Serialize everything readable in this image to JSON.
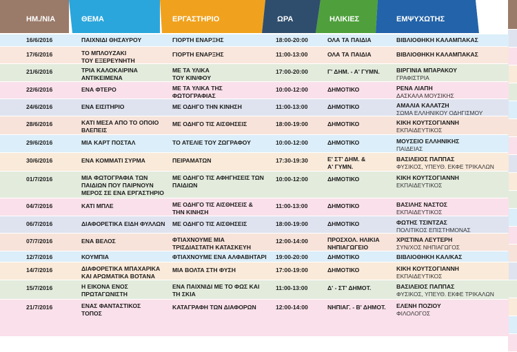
{
  "header": {
    "date": "ΗΜ./ΝΙΑ",
    "theme": "ΘΕΜΑ",
    "workshop": "ΕΡΓΑΣΤΗΡΙΟ",
    "time": "ΩΡΑ",
    "ages": "ΗΛΙΚΙΕΣ",
    "host": "ΕΜΨΥΧΩΤΗΣ"
  },
  "colors": {
    "date_header": "#9a7a69",
    "theme_header": "#2aa6dc",
    "workshop_header": "#f0a21e",
    "time_header": "#2f4e6d",
    "ages_header": "#4f9f3c",
    "host_header": "#2363a9"
  },
  "rows": [
    {
      "date": "16/6/2016",
      "theme": [
        "ΠΑΙΧΝΙΔΙ ΘΗΣΑΥΡΟΥ"
      ],
      "workshop": [
        "ΓΙΟΡΤΗ ΕΝΑΡΞΗΣ"
      ],
      "time": "18:00-20:00",
      "age": [
        "ΟΛΑ ΤΑ ΠΑΙΔΙΑ"
      ],
      "host": "ΒΙΒΛΙΟΘΗΚΗ ΚΑΛΑΜΠΑΚΑΣ",
      "host_sub": "",
      "bg": "#dbeef9"
    },
    {
      "date": "17/6/2016",
      "theme": [
        "ΤΟ ΜΠΛΟΥΖΑΚΙ",
        "ΤΟΥ ΕΞΕΡΕΥΝΗΤΗ"
      ],
      "workshop": [
        "ΓΙΟΡΤΗ ΕΝΑΡΞΗΣ"
      ],
      "time": "11:00-13:00",
      "age": [
        "ΟΛΑ ΤΑ ΠΑΙΔΙΑ"
      ],
      "host": "ΒΙΒΛΙΟΘΗΚΗ ΚΑΛΑΜΠΑΚΑΣ",
      "host_sub": "",
      "bg": "#f9e6dc"
    },
    {
      "date": "21/6/2016",
      "theme": [
        "ΤΡΙΑ ΚΑΛΟΚΑΙΡΙΝΑ",
        "ΑΝΤΙΚΕΙΜΕΝΑ"
      ],
      "workshop": [
        "ΜΕ ΤΑ ΥΛΙΚΑ",
        "ΤΟΥ ΚΙΝ/ΦΟΥ"
      ],
      "time": "17:00-20:00",
      "age": [
        "Γ' ΔΗΜ. - Α' ΓΥΜΝ."
      ],
      "host": "ΒΙΡΓΙΝΙΑ ΜΠΑΡΑΚΟΥ",
      "host_sub": "ΓΡΑΦΙΣΤΡΙΑ",
      "bg": "#e3ebdd"
    },
    {
      "date": "22/6/2016",
      "theme": [
        "ΕΝΑ ΦΤΕΡΟ"
      ],
      "workshop": [
        "ΜΕ ΤΑ ΥΛΙΚΑ ΤΗΣ",
        "ΦΩΤΟΓΡΑΦΙΑΣ"
      ],
      "time": "10:00-12:00",
      "age": [
        "ΔΗΜΟΤΙΚΟ"
      ],
      "host": "ΡΕΝΑ ΛΙΑΠΗ",
      "host_sub": "ΔΑΣΚΑΛΑ ΜΟΥΣΙΚΗΣ",
      "bg": "#fae0ea"
    },
    {
      "date": "24/6/2016",
      "theme": [
        "ΕΝΑ ΕΙΣΙΤΗΡΙΟ"
      ],
      "workshop": [
        "ΜΕ ΟΔΗΓΟ ΤΗΝ ΚΙΝΗΣΗ"
      ],
      "time": "11:00-13:00",
      "age": [
        "ΔΗΜΟΤΙΚΟ"
      ],
      "host": "ΑΜΑΛΙΑ ΚΑΛΑΤΖΗ",
      "host_sub": "ΣΩΜΑ ΕΛΛΗΝΙΚΟΥ ΟΔΗΓΙΣΜΟΥ",
      "bg": "#dfe3ef"
    },
    {
      "date": "28/6/2016",
      "theme": [
        "ΚΑΤΙ ΜΕΣΑ ΑΠΟ ΤΟ ΟΠΟΙΟ",
        "ΒΛΕΠΕΙΣ"
      ],
      "workshop": [
        "ΜΕ ΟΔΗΓΟ ΤΙΣ ΑΙΣΘΗΣΕΙΣ"
      ],
      "time": "18:00-19:00",
      "age": [
        "ΔΗΜΟΤΙΚΟ"
      ],
      "host": "ΚΙΚΗ ΚΟΥΤΣΟΓΙΑΝΝΗ",
      "host_sub": "ΕΚΠΑΙΔΕΥΤΙΚΟΣ",
      "bg": "#f7e3da"
    },
    {
      "date": "29/6/2016",
      "theme": [
        "ΜΙΑ ΚΑΡΤ ΠΟΣΤΑΛ"
      ],
      "workshop": [
        "ΤΟ ΑΤΕΛΙΕ ΤΟΥ ΖΩΓΡΑΦΟΥ"
      ],
      "time": "10:00-12:00",
      "age": [
        "ΔΗΜΟΤΙΚΟ"
      ],
      "host": "ΜΟΥΣΕΙΟ ΕΛΛΗΝΙΚΗΣ",
      "host_sub": "ΠΑΙΔΕΙΑΣ",
      "bg": "#dbeef9"
    },
    {
      "date": "30/6/2016",
      "theme": [
        "ΕΝΑ ΚΟΜΜΑΤΙ ΣΥΡΜΑ"
      ],
      "workshop": [
        "ΠΕΙΡΑΜΑΤΩΝ"
      ],
      "time": "17:30-19:30",
      "age": [
        "Ε' ΣΤ' ΔΗΜ. &",
        "Α' ΓΥΜΝ."
      ],
      "host": "ΒΑΣΙΛΕΙΟΣ ΠΑΠΠΑΣ",
      "host_sub": "ΦΥΣΙΚΟΣ, ΥΠΕΥΘ. ΕΚΦΕ ΤΡΙΚΑΛΩΝ",
      "bg": "#faead9"
    },
    {
      "date": "01/7/2016",
      "theme": [
        "ΜΙΑ ΦΩΤΟΓΡΑΦΙΑ ΤΩΝ",
        "ΠΑΙΔΙΩΝ ΠΟΥ ΠΑΙΡΝΟΥΝ",
        "ΜΕΡΟΣ ΣΕ ΕΝΑ ΕΡΓΑΣΤΗΡΙΟ"
      ],
      "workshop": [
        "ΜΕ ΟΔΗΓΟ ΤΙΣ ΑΦΗΓΗΣΕΙΣ ΤΩΝ",
        "ΠΑΙΔΙΩΝ"
      ],
      "time": "10:00-12:00",
      "age": [
        "ΔΗΜΟΤΙΚΟ"
      ],
      "host": "ΚΙΚΗ ΚΟΥΤΣΟΓΙΑΝΝΗ",
      "host_sub": "ΕΚΠΑΙΔΕΥΤΙΚΟΣ",
      "bg": "#e3ebdd"
    },
    {
      "date": "04/7/2016",
      "theme": [
        "ΚΑΤΙ ΜΠΛΕ"
      ],
      "workshop": [
        "ΜΕ ΟΔΗΓΟ ΤΙΣ ΑΙΣΘΗΣΕΙΣ &",
        "ΤΗΝ ΚΙΝΗΣΗ"
      ],
      "time": "11:00-13:00",
      "age": [
        "ΔΗΜΟΤΙΚΟ"
      ],
      "host": "ΒΑΣΙΛΗΣ ΝΑΣΤΟΣ",
      "host_sub": "ΕΚΠΑΙΔΕΥΤΙΚΟΣ",
      "bg": "#fae0ea"
    },
    {
      "date": "06/7/2016",
      "theme": [
        "ΔΙΑΦΟΡΕΤΙΚΑ ΕΙΔΗ ΦΥΛΛΩΝ"
      ],
      "workshop": [
        "ΜΕ ΟΔΗΓΟ ΤΙΣ ΑΙΣΘΗΣΕΙΣ"
      ],
      "time": "18:00-19:00",
      "age": [
        "ΔΗΜΟΤΙΚΟ"
      ],
      "host": "ΦΩΤΗΣ ΤΣΙΝΤΖΑΣ",
      "host_sub": "ΠΟΛΙΤΙΚΟΣ ΕΠΙΣΤΗΜΟΝΑΣ",
      "bg": "#dfe3ef"
    },
    {
      "date": "07/7/2016",
      "theme": [
        "ΕΝΑ ΒΕΛΟΣ"
      ],
      "workshop": [
        "ΦΤΙΑΧΝΟΥΜΕ ΜΙΑ",
        "ΤΡΙΣΔΙΑΣΤΑΤΗ ΚΑΤΑΣΚΕΥΗ"
      ],
      "time": "12:00-14:00",
      "age": [
        "ΠΡΟΣΧΟΛ. ΗΛΙΚΙΑ",
        "ΝΗΠΙΑΓΩΓΕΙΟ"
      ],
      "host": "ΧΡΙΣΤΙΝΑ ΛΕΥΤΕΡΗ",
      "host_sub": "ΣΥΝ/ΧΟΣ ΝΗΠΙΑΓΩΓΟΣ",
      "bg": "#f7e3da"
    },
    {
      "date": "12/7/2016",
      "theme": [
        "ΚΟΥΜΠΙΑ"
      ],
      "workshop": [
        "ΦΤΙΑΧΝΟΥΜΕ ΕΝΑ ΑΛΦΑΒΗΤΑΡΙ"
      ],
      "time": "19:00-20:00",
      "age": [
        "ΔΗΜΟΤΙΚΟ"
      ],
      "host": "ΒΙΒΛΙΟΘΗΚΗ ΚΑΛ/ΚΑΣ",
      "host_sub": "",
      "bg": "#dbeef9"
    },
    {
      "date": "14/7/2016",
      "theme": [
        "ΔΙΑΦΟΡΕΤΙΚΑ ΜΠΑΧΑΡΙΚΑ",
        "ΚΑΙ ΑΡΩΜΑΤΙΚΑ ΒΟΤΑΝΑ"
      ],
      "workshop": [
        "ΜΙΑ ΒΟΛΤΑ ΣΤΗ ΦΥΣΗ"
      ],
      "time": "17:00-19:00",
      "age": [
        "ΔΗΜΟΤΙΚΟ"
      ],
      "host": "ΚΙΚΗ ΚΟΥΤΣΟΓΙΑΝΝΗ",
      "host_sub": "ΕΚΠΑΙΔΕΥΤΙΚΟΣ",
      "bg": "#faead9"
    },
    {
      "date": "15/7/2016",
      "theme": [
        "Η ΕΙΚΟΝΑ ΕΝΟΣ",
        "ΠΡΩΤΑΓΩΝΙΣΤΗ"
      ],
      "workshop": [
        "ΕΝΑ ΠΑΙΧΝΙΔΙ ΜΕ ΤΟ ΦΩΣ ΚΑΙ",
        "ΤΗ ΣΚΙΑ"
      ],
      "time": "11:00-13:00",
      "age": [
        "Δ' - ΣΤ' ΔΗΜΟΤ."
      ],
      "host": "ΒΑΣΙΛΕΙΟΣ ΠΑΠΠΑΣ",
      "host_sub": "ΦΥΣΙΚΟΣ, ΥΠΕΥΘ. ΕΚΦΕ ΤΡΙΚΑΛΩΝ",
      "bg": "#e3ebdd"
    },
    {
      "date": "21/7/2016",
      "theme": [
        "ΕΝΑΣ ΦΑΝΤΑΣΤΙΚΟΣ",
        "ΤΟΠΟΣ"
      ],
      "workshop": [
        "ΚΑΤΑΓΡΑΦΗ ΤΩΝ ΔΙΑΦΟΡΩΝ"
      ],
      "time": "12:00-14:00",
      "age": [
        "ΝΗΠΙΑΓ. - Β' ΔΗΜΟΤ."
      ],
      "host": "ΕΛΕΝΗ ΠΟΖΙΟΥ",
      "host_sub": "ΦΙΛΟΛΟΓΟΣ",
      "bg": "#fae0ea"
    }
  ]
}
